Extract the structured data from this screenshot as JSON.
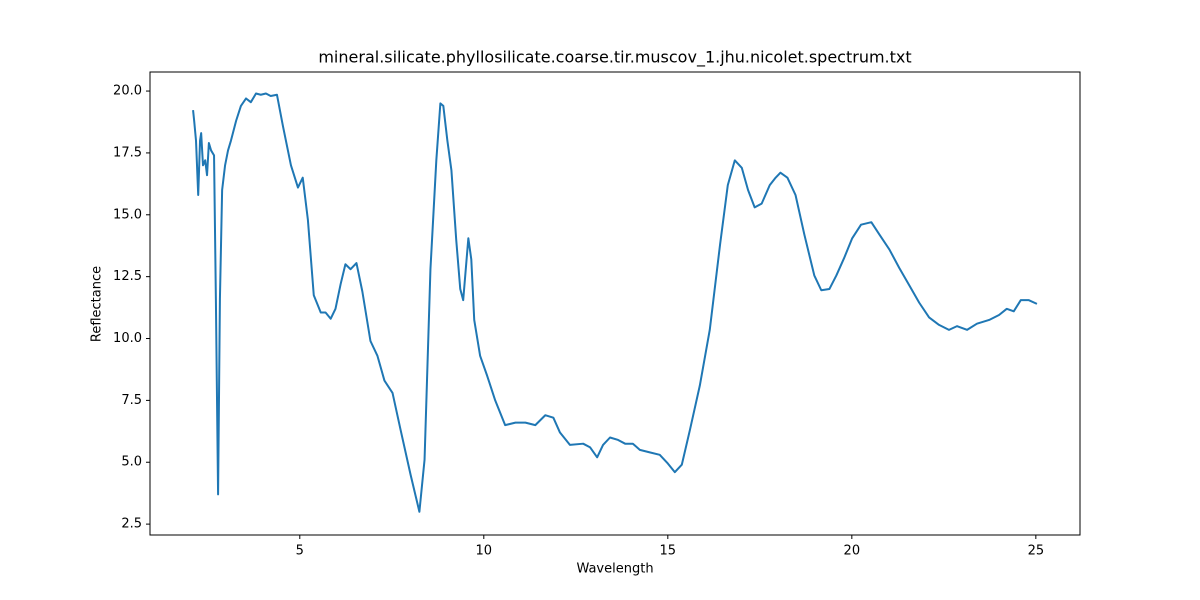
{
  "chart_data": {
    "type": "line",
    "title": "mineral.silicate.phyllosilicate.coarse.tir.muscov_1.jhu.nicolet.spectrum.txt",
    "x_label": "Wavelength",
    "y_label": "Reflectance",
    "color": "#1f77b4",
    "xlim": [
      0.93,
      26.2
    ],
    "ylim": [
      2.06,
      20.77
    ],
    "xticks": [
      5,
      10,
      15,
      20,
      25
    ],
    "yticks": [
      2.5,
      {
        "value": 5,
        "label": "5.0"
      },
      7.5,
      {
        "value": 10,
        "label": "10.0"
      },
      12.5,
      {
        "value": 15,
        "label": "15.0"
      },
      17.5,
      {
        "value": 20,
        "label": "20.0"
      }
    ],
    "x": [
      2.1,
      2.13,
      2.18,
      2.24,
      2.29,
      2.32,
      2.37,
      2.43,
      2.48,
      2.53,
      2.59,
      2.67,
      2.72,
      2.78,
      2.83,
      2.89,
      2.97,
      3.05,
      3.13,
      3.27,
      3.4,
      3.54,
      3.67,
      3.81,
      3.94,
      4.08,
      4.21,
      4.38,
      4.54,
      4.76,
      4.95,
      5.08,
      5.22,
      5.38,
      5.57,
      5.7,
      5.84,
      5.97,
      6.11,
      6.24,
      6.38,
      6.54,
      6.7,
      6.92,
      7.11,
      7.3,
      7.52,
      7.74,
      8.01,
      8.17,
      8.25,
      8.39,
      8.55,
      8.71,
      8.82,
      8.9,
      9.01,
      9.12,
      9.25,
      9.36,
      9.44,
      9.58,
      9.66,
      9.74,
      9.9,
      10.09,
      10.31,
      10.58,
      10.86,
      11.13,
      11.4,
      11.67,
      11.89,
      12.07,
      12.34,
      12.7,
      12.89,
      13.08,
      13.24,
      13.43,
      13.65,
      13.84,
      14.05,
      14.24,
      14.51,
      14.78,
      15.0,
      15.19,
      15.38,
      15.6,
      15.87,
      16.14,
      16.42,
      16.63,
      16.82,
      17.01,
      17.18,
      17.36,
      17.55,
      17.77,
      17.93,
      18.06,
      18.25,
      18.47,
      18.71,
      18.98,
      19.17,
      19.39,
      19.58,
      19.79,
      20.01,
      20.25,
      20.53,
      20.75,
      21.02,
      21.29,
      21.56,
      21.83,
      22.1,
      22.37,
      22.64,
      22.86,
      23.13,
      23.4,
      23.73,
      24.0,
      24.21,
      24.4,
      24.59,
      24.81,
      25.03
    ],
    "values": [
      19.23,
      18.8,
      18.0,
      15.8,
      18.0,
      18.3,
      17.0,
      17.2,
      16.6,
      17.9,
      17.6,
      17.4,
      11.6,
      3.7,
      11.6,
      16.0,
      17.0,
      17.6,
      18.0,
      18.8,
      19.4,
      19.7,
      19.55,
      19.9,
      19.85,
      19.9,
      19.8,
      19.85,
      18.6,
      17.0,
      16.1,
      16.5,
      14.8,
      11.75,
      11.05,
      11.05,
      10.8,
      11.2,
      12.2,
      13.0,
      12.8,
      13.05,
      11.9,
      9.9,
      9.3,
      8.3,
      7.8,
      6.3,
      4.5,
      3.5,
      3.0,
      5.1,
      12.8,
      17.2,
      19.5,
      19.4,
      18.0,
      16.8,
      14.0,
      12.0,
      11.55,
      14.05,
      13.2,
      10.75,
      9.3,
      8.5,
      7.5,
      6.5,
      6.6,
      6.6,
      6.5,
      6.9,
      6.8,
      6.2,
      5.7,
      5.75,
      5.6,
      5.2,
      5.7,
      6.0,
      5.9,
      5.75,
      5.75,
      5.5,
      5.4,
      5.3,
      4.95,
      4.6,
      4.9,
      6.3,
      8.1,
      10.35,
      13.8,
      16.2,
      17.2,
      16.9,
      16.0,
      15.3,
      15.45,
      16.2,
      16.5,
      16.7,
      16.5,
      15.8,
      14.2,
      12.55,
      11.95,
      12.0,
      12.55,
      13.25,
      14.05,
      14.6,
      14.7,
      14.2,
      13.6,
      12.85,
      12.15,
      11.45,
      10.85,
      10.55,
      10.35,
      10.5,
      10.35,
      10.6,
      10.75,
      10.95,
      11.2,
      11.1,
      11.55,
      11.55,
      11.4
    ]
  }
}
